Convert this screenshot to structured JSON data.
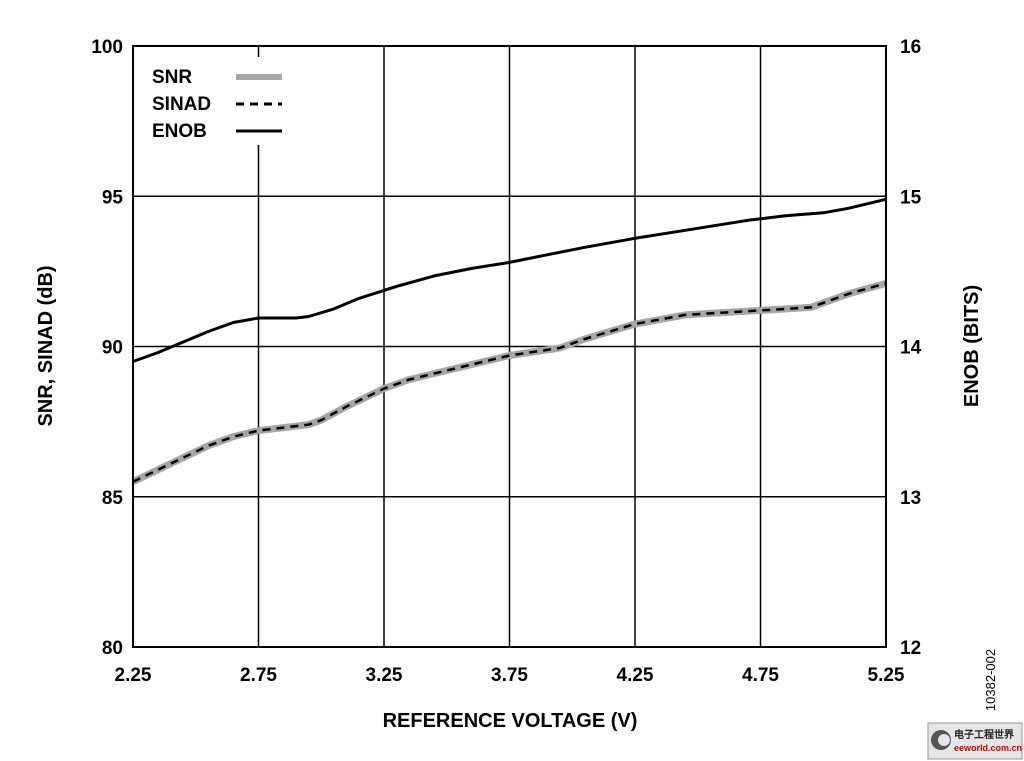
{
  "chart_data": {
    "type": "line",
    "title": "",
    "xlabel": "REFERENCE VOLTAGE (V)",
    "ylabel": "SNR, SINAD (dB)",
    "y2label": "ENOB (BITS)",
    "xlim": [
      2.25,
      5.25
    ],
    "ylim": [
      80,
      100
    ],
    "y2lim": [
      12,
      16
    ],
    "xticks": [
      "2.25",
      "2.75",
      "3.25",
      "3.75",
      "4.25",
      "4.75",
      "5.25"
    ],
    "yticks": [
      "80",
      "85",
      "90",
      "95",
      "100"
    ],
    "y2ticks": [
      "12",
      "13",
      "14",
      "15",
      "16"
    ],
    "grid": true,
    "legend_position": "top-left",
    "series": [
      {
        "name": "SNR",
        "axis": "left",
        "style": "solid-thick-gray",
        "color": "#a6a6a6",
        "x": [
          2.25,
          2.4,
          2.55,
          2.65,
          2.75,
          2.85,
          2.95,
          3.0,
          3.1,
          3.25,
          3.35,
          3.5,
          3.65,
          3.75,
          3.95,
          4.05,
          4.25,
          4.45,
          4.55,
          4.75,
          4.95,
          5.1,
          5.25
        ],
        "y": [
          85.5,
          86.1,
          86.7,
          87.0,
          87.2,
          87.3,
          87.4,
          87.55,
          88.0,
          88.6,
          88.9,
          89.2,
          89.5,
          89.7,
          89.95,
          90.25,
          90.75,
          91.05,
          91.1,
          91.2,
          91.3,
          91.75,
          92.1
        ]
      },
      {
        "name": "SINAD",
        "axis": "left",
        "style": "dashed",
        "color": "#000000",
        "x": [
          2.25,
          2.4,
          2.55,
          2.65,
          2.75,
          2.85,
          2.95,
          3.0,
          3.1,
          3.25,
          3.35,
          3.5,
          3.65,
          3.75,
          3.95,
          4.05,
          4.25,
          4.45,
          4.55,
          4.75,
          4.95,
          5.1,
          5.25
        ],
        "y": [
          85.5,
          86.1,
          86.7,
          87.0,
          87.2,
          87.3,
          87.4,
          87.55,
          88.0,
          88.6,
          88.9,
          89.2,
          89.5,
          89.7,
          89.95,
          90.25,
          90.75,
          91.05,
          91.1,
          91.2,
          91.3,
          91.75,
          92.1
        ]
      },
      {
        "name": "ENOB",
        "axis": "right",
        "style": "solid",
        "color": "#000000",
        "x": [
          2.25,
          2.35,
          2.45,
          2.55,
          2.65,
          2.75,
          2.85,
          2.9,
          2.95,
          3.05,
          3.15,
          3.3,
          3.45,
          3.6,
          3.75,
          3.9,
          4.05,
          4.25,
          4.4,
          4.55,
          4.7,
          4.85,
          5.0,
          5.1,
          5.25
        ],
        "y": [
          13.9,
          13.96,
          14.03,
          14.1,
          14.16,
          14.19,
          14.19,
          14.19,
          14.2,
          14.25,
          14.32,
          14.4,
          14.47,
          14.52,
          14.56,
          14.61,
          14.66,
          14.72,
          14.76,
          14.8,
          14.84,
          14.87,
          14.89,
          14.92,
          14.98
        ]
      }
    ]
  },
  "figure_id": "10382-002",
  "watermark": {
    "line1": "电子工程世界",
    "line2": "eeworld.com.cn"
  }
}
